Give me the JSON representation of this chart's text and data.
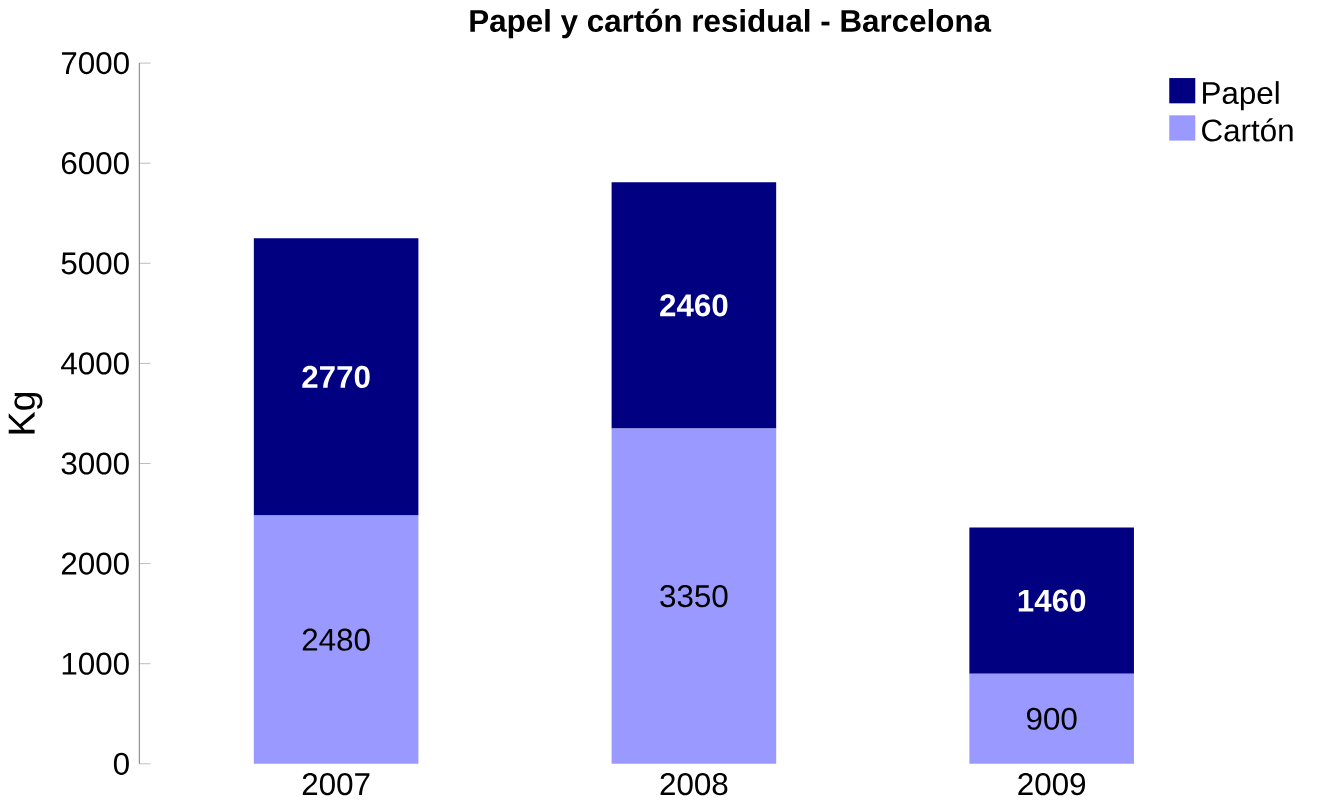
{
  "chart_data": {
    "type": "bar",
    "title": "Papel y cartón residual - Barcelona",
    "ylabel": "Kg",
    "categories": [
      "2007",
      "2008",
      "2009"
    ],
    "stacked": true,
    "series": [
      {
        "name": "Cartón",
        "color": "#9999ff",
        "values": [
          2480,
          3350,
          900
        ]
      },
      {
        "name": "Papel",
        "color": "#000080",
        "values": [
          2770,
          2460,
          1460
        ]
      }
    ],
    "ylim": [
      0,
      7000
    ],
    "yticks": [
      0,
      1000,
      2000,
      3000,
      4000,
      5000,
      6000,
      7000
    ],
    "data_labels": true,
    "legend": "top right",
    "grid": false
  }
}
